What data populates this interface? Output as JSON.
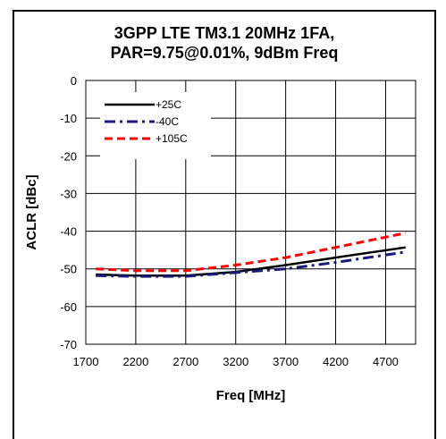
{
  "chart_data": {
    "type": "line",
    "title": "3GPP LTE TM3.1 20MHz 1FA,",
    "subtitle": "PAR=9.75@0.01%,  9dBm Freq",
    "xlabel": "Freq [MHz]",
    "ylabel": "ACLR [dBc]",
    "xlim": [
      1700,
      5000
    ],
    "ylim": [
      -70,
      0
    ],
    "xticks": [
      1700,
      2200,
      2700,
      3200,
      3700,
      4200,
      4700
    ],
    "yticks": [
      0,
      -10,
      -20,
      -30,
      -40,
      -50,
      -60,
      -70
    ],
    "grid": true,
    "legend_position": "top-left",
    "series": [
      {
        "name": "+25C",
        "color": "#000000",
        "dash": "solid",
        "x": [
          1800,
          2200,
          2700,
          3200,
          3700,
          4200,
          4900
        ],
        "y": [
          -51.5,
          -51.8,
          -51.8,
          -50.8,
          -49.0,
          -47.0,
          -44.3
        ]
      },
      {
        "name": "-40C",
        "color": "#1a1a7a",
        "dash": "dashdot",
        "x": [
          1800,
          2200,
          2700,
          3200,
          3700,
          4200,
          4900
        ],
        "y": [
          -51.8,
          -52.0,
          -52.0,
          -51.0,
          -50.0,
          -48.3,
          -45.5
        ]
      },
      {
        "name": "+105C",
        "color": "#ff0000",
        "dash": "dash",
        "x": [
          1800,
          2200,
          2700,
          3200,
          3700,
          4200,
          4900
        ],
        "y": [
          -50.0,
          -50.5,
          -50.5,
          -49.0,
          -47.0,
          -44.3,
          -40.5
        ]
      }
    ]
  }
}
